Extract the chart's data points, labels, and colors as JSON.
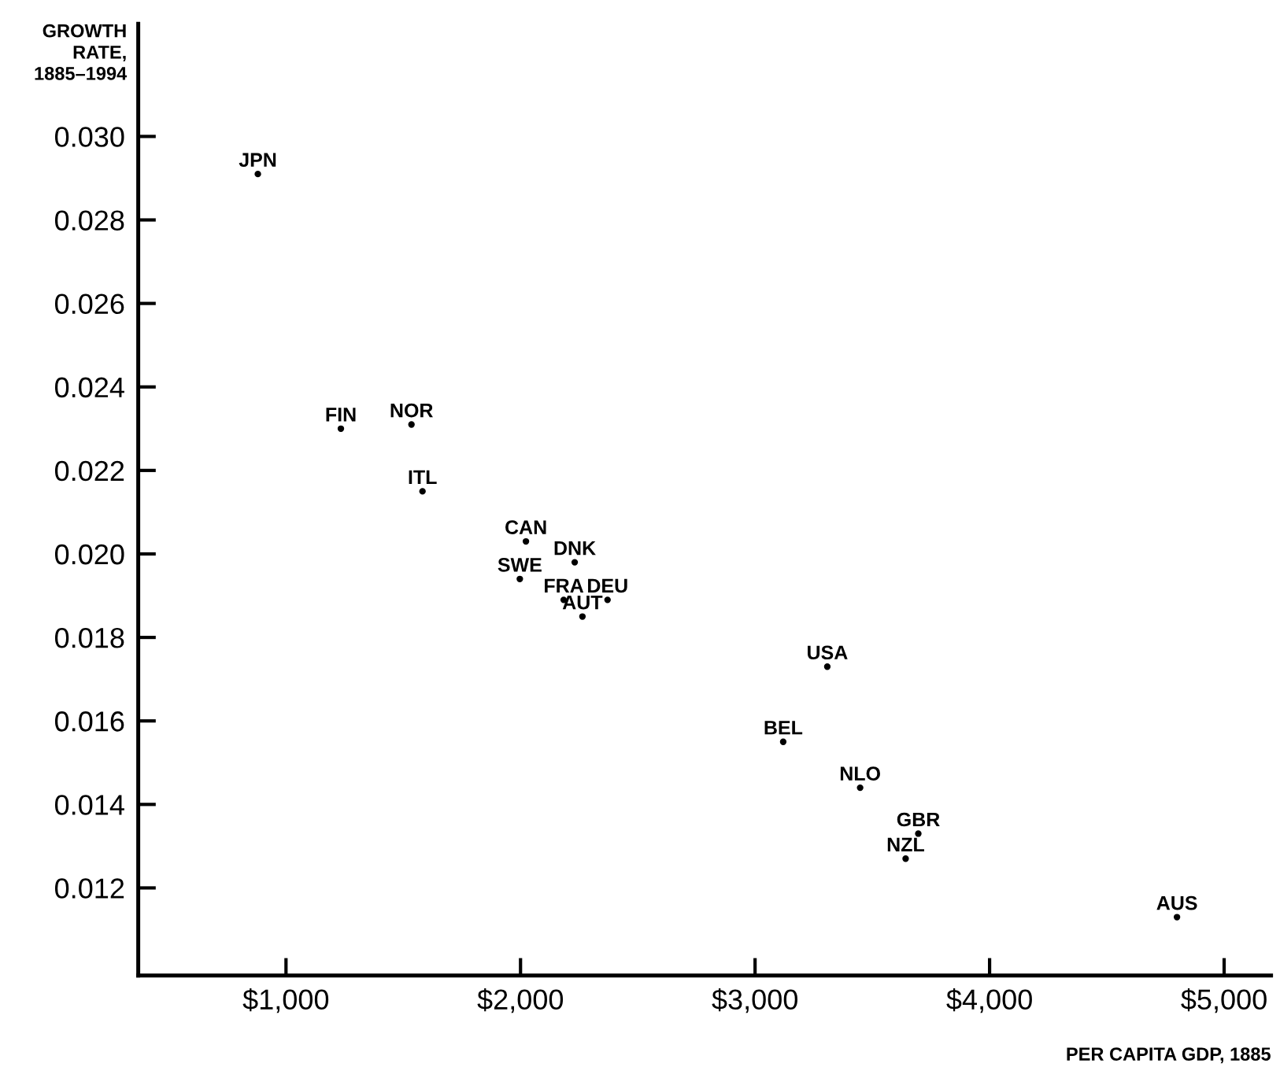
{
  "chart_data": {
    "type": "scatter",
    "xlabel": "PER CAPITA GDP, 1885",
    "ylabel": "GROWTH\nRATE,\n1885–1994",
    "series": [
      {
        "color": "#000000",
        "marker": "circle",
        "x": [
          880,
          1234,
          1535,
          1582,
          2023,
          2231,
          1997,
          2184,
          2371,
          2264,
          3308,
          3120,
          3448,
          3696,
          3642,
          4799
        ],
        "values": [
          0.0291,
          0.023,
          0.0231,
          0.0215,
          0.0203,
          0.0198,
          0.0194,
          0.0189,
          0.0189,
          0.0185,
          0.0173,
          0.0155,
          0.0144,
          0.0133,
          0.0127,
          0.0113
        ]
      }
    ],
    "annotations": [
      {
        "text": "JPN",
        "x": 880,
        "y": 0.0291
      },
      {
        "text": "FIN",
        "x": 1234,
        "y": 0.023
      },
      {
        "text": "NOR",
        "x": 1535,
        "y": 0.0231
      },
      {
        "text": "ITL",
        "x": 1582,
        "y": 0.0215
      },
      {
        "text": "CAN",
        "x": 2023,
        "y": 0.0203
      },
      {
        "text": "DNK",
        "x": 2231,
        "y": 0.0198
      },
      {
        "text": "SWE",
        "x": 1997,
        "y": 0.0194
      },
      {
        "text": "FRA",
        "x": 2184,
        "y": 0.0189
      },
      {
        "text": "DEU",
        "x": 2371,
        "y": 0.0189
      },
      {
        "text": "AUT",
        "x": 2264,
        "y": 0.0185
      },
      {
        "text": "USA",
        "x": 3308,
        "y": 0.0173
      },
      {
        "text": "BEL",
        "x": 3120,
        "y": 0.0155
      },
      {
        "text": "NLO",
        "x": 3448,
        "y": 0.0144
      },
      {
        "text": "GBR",
        "x": 3696,
        "y": 0.0133
      },
      {
        "text": "NZL",
        "x": 3642,
        "y": 0.0127
      },
      {
        "text": "AUS",
        "x": 4799,
        "y": 0.0113
      }
    ],
    "xlim": [
      370,
      5200
    ],
    "ylim": [
      0.0099,
      0.0327
    ],
    "xticks": [
      {
        "value": 1000,
        "label": "$1,000"
      },
      {
        "value": 2000,
        "label": "$2,000"
      },
      {
        "value": 3000,
        "label": "$3,000"
      },
      {
        "value": 4000,
        "label": "$4,000"
      },
      {
        "value": 5000,
        "label": "$5,000"
      }
    ],
    "yticks": [
      {
        "value": 0.012,
        "label": "0.012"
      },
      {
        "value": 0.014,
        "label": "0.014"
      },
      {
        "value": 0.016,
        "label": "0.016"
      },
      {
        "value": 0.018,
        "label": "0.018"
      },
      {
        "value": 0.02,
        "label": "0.020"
      },
      {
        "value": 0.022,
        "label": "0.022"
      },
      {
        "value": 0.024,
        "label": "0.024"
      },
      {
        "value": 0.026,
        "label": "0.026"
      },
      {
        "value": 0.028,
        "label": "0.028"
      },
      {
        "value": 0.03,
        "label": "0.030"
      }
    ],
    "grid": false,
    "legend": false
  }
}
